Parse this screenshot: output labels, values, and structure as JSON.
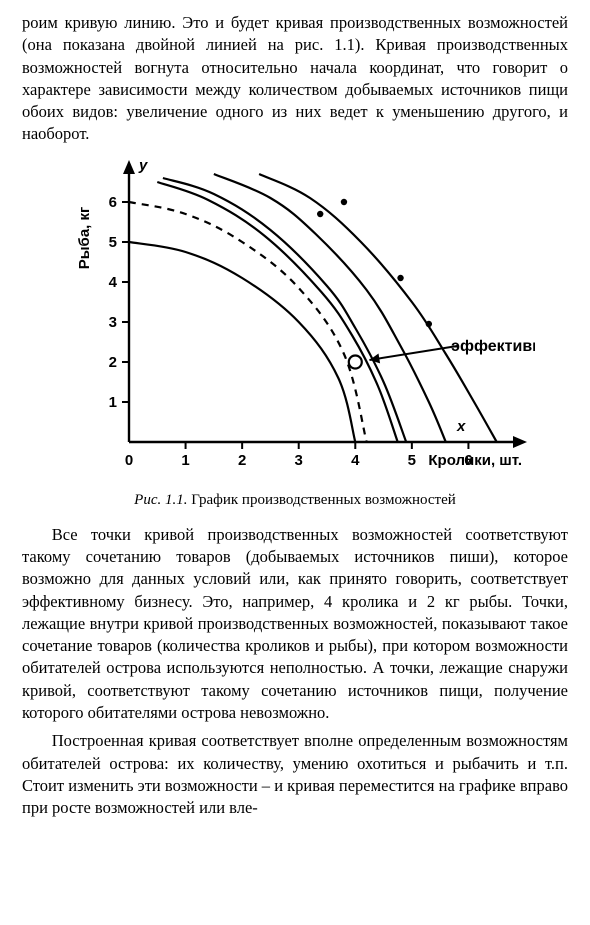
{
  "paragraphs": {
    "p1": "роим кривую линию. Это и будет кривая производственных возможностей (она показана двойной линией на рис. 1.1). Кривая производственных возможностей вогнута относительно начала координат, что говорит о характере зависимости между количеством добываемых источников пищи обоих видов: увеличение одного из них ведет к уменьшению другого, и наоборот.",
    "p2": "Все точки кривой производственных возможностей соответствуют такому сочетанию товаров (добываемых источников пиши), которое возможно для данных условий или, как принято говорить, соответствует эффективному бизнесу. Это, например, 4 кролика и 2 кг рыбы. Точки, лежащие внутри кривой производственных возможностей, показывают такое сочетание товаров (количества кроликов и рыбы), при котором возможности обитателей острова используются неполностью. А точки, лежащие снаружи кривой, соответствуют такому сочетанию источников пищи, получение которого обитателями острова невозможно.",
    "p3": "Построенная кривая соответствует вполне определенным возможностям обитателей острова: их количеству, умению охотиться и рыбачить и т.п. Стоит изменить эти возможности – и кривая переместится на графике вправо при росте возможностей или вле-"
  },
  "caption": {
    "ref": "Рис. 1.1.",
    "text": "График производственных возможностей"
  },
  "chart": {
    "type": "line",
    "background_color": "#ffffff",
    "axis_color": "#000000",
    "x_axis_label": "Кролики, шт.",
    "x_letter": "x",
    "y_axis_label": "Рыба, кг",
    "y_letter": "y",
    "annotation": "эффективный бизнес",
    "xlim": [
      0,
      7
    ],
    "ylim": [
      0,
      7
    ],
    "x_ticks": [
      0,
      1,
      2,
      3,
      4,
      5,
      6
    ],
    "y_ticks": [
      1,
      2,
      3,
      4,
      5,
      6
    ],
    "curves": {
      "inner": [
        [
          0,
          5.0
        ],
        [
          1,
          4.75
        ],
        [
          2,
          4.1
        ],
        [
          3,
          3.0
        ],
        [
          3.7,
          1.6
        ],
        [
          4.0,
          0
        ]
      ],
      "dashed": [
        [
          0,
          6.0
        ],
        [
          1,
          5.7
        ],
        [
          2,
          5.0
        ],
        [
          3,
          3.85
        ],
        [
          3.8,
          2.2
        ],
        [
          4.2,
          0
        ]
      ],
      "double_outer": [
        [
          0.6,
          6.6
        ],
        [
          1.5,
          6.2
        ],
        [
          2.5,
          5.3
        ],
        [
          3.5,
          3.9
        ],
        [
          4.0,
          2.85
        ],
        [
          4.5,
          1.5
        ],
        [
          4.9,
          0
        ]
      ],
      "double_inner": [
        [
          0.5,
          6.5
        ],
        [
          1.4,
          6.05
        ],
        [
          2.4,
          5.15
        ],
        [
          3.4,
          3.75
        ],
        [
          3.95,
          2.65
        ],
        [
          4.4,
          1.4
        ],
        [
          4.75,
          0
        ]
      ],
      "mid": [
        [
          1.5,
          6.7
        ],
        [
          2.5,
          6.1
        ],
        [
          3.3,
          5.2
        ],
        [
          4.2,
          3.8
        ],
        [
          4.8,
          2.4
        ],
        [
          5.3,
          1.0
        ],
        [
          5.6,
          0
        ]
      ],
      "outer": [
        [
          2.3,
          6.7
        ],
        [
          3.2,
          6.1
        ],
        [
          4.1,
          5.0
        ],
        [
          5.0,
          3.5
        ],
        [
          5.6,
          2.2
        ],
        [
          6.1,
          1.0
        ],
        [
          6.5,
          0
        ]
      ]
    },
    "markers": {
      "open_circle": [
        4.0,
        2.0
      ],
      "dots": [
        [
          3.8,
          6.0
        ],
        [
          3.38,
          5.7
        ],
        [
          4.8,
          4.1
        ],
        [
          5.3,
          2.95
        ]
      ]
    },
    "arrow": {
      "from": [
        5.8,
        2.4
      ],
      "to": [
        4.25,
        2.05
      ]
    }
  }
}
